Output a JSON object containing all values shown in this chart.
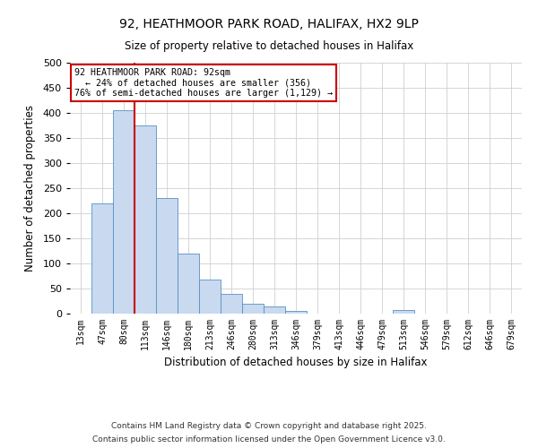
{
  "title": "92, HEATHMOOR PARK ROAD, HALIFAX, HX2 9LP",
  "subtitle": "Size of property relative to detached houses in Halifax",
  "xlabel": "Distribution of detached houses by size in Halifax",
  "ylabel": "Number of detached properties",
  "bin_labels": [
    "13sqm",
    "47sqm",
    "80sqm",
    "113sqm",
    "146sqm",
    "180sqm",
    "213sqm",
    "246sqm",
    "280sqm",
    "313sqm",
    "346sqm",
    "379sqm",
    "413sqm",
    "446sqm",
    "479sqm",
    "513sqm",
    "546sqm",
    "579sqm",
    "612sqm",
    "646sqm",
    "679sqm"
  ],
  "bar_heights": [
    0,
    220,
    405,
    375,
    230,
    120,
    68,
    40,
    20,
    15,
    5,
    0,
    0,
    0,
    0,
    7,
    0,
    0,
    0,
    0,
    0
  ],
  "bar_color": "#c8d9f0",
  "bar_edge_color": "#5a8fc3",
  "vline_x_index": 2,
  "vline_color": "#cc0000",
  "annotation_title": "92 HEATHMOOR PARK ROAD: 92sqm",
  "annotation_line1": "← 24% of detached houses are smaller (356)",
  "annotation_line2": "76% of semi-detached houses are larger (1,129) →",
  "annotation_box_color": "#cc0000",
  "ylim": [
    0,
    500
  ],
  "yticks": [
    0,
    50,
    100,
    150,
    200,
    250,
    300,
    350,
    400,
    450,
    500
  ],
  "footer1": "Contains HM Land Registry data © Crown copyright and database right 2025.",
  "footer2": "Contains public sector information licensed under the Open Government Licence v3.0.",
  "background_color": "#ffffff",
  "grid_color": "#d0d0d0"
}
